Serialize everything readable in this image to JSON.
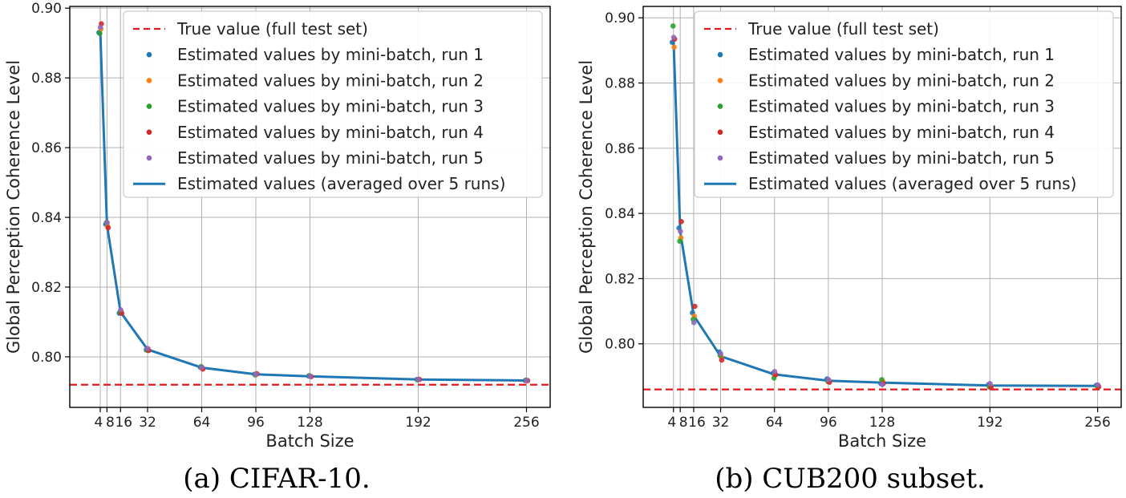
{
  "colors": {
    "run1": "#1f77b4",
    "run2": "#ff7f0e",
    "run3": "#2ca02c",
    "run4": "#d62728",
    "run5": "#9467bd",
    "average": "#1f77b4",
    "true_value": "#e31a1c",
    "grid": "#b0b0b0"
  },
  "legend_labels": {
    "true_value": "True value (full test set)",
    "run1": "Estimated values by mini-batch, run 1",
    "run2": "Estimated values by mini-batch, run 2",
    "run3": "Estimated values by mini-batch, run 3",
    "run4": "Estimated values by mini-batch, run 4",
    "run5": "Estimated values by mini-batch, run 5",
    "average": "Estimated values (averaged over 5 runs)"
  },
  "chart_data": [
    {
      "type": "line",
      "caption": "(a) CIFAR-10.",
      "xlabel": "Batch Size",
      "ylabel": "Global Perception Coherence Level",
      "x": [
        4,
        8,
        16,
        32,
        64,
        96,
        128,
        192,
        256
      ],
      "xticks": [
        4,
        8,
        16,
        32,
        64,
        96,
        128,
        192,
        256
      ],
      "xtick_labels": [
        "4",
        "8",
        "16",
        "32",
        "64",
        "96",
        "128",
        "192",
        "256"
      ],
      "xlim": [
        -14,
        270
      ],
      "ylim": [
        0.7855,
        0.9005
      ],
      "yticks": [
        0.8,
        0.82,
        0.84,
        0.86,
        0.88,
        0.9
      ],
      "ytick_labels": [
        "0.80",
        "0.82",
        "0.84",
        "0.86",
        "0.88",
        "0.90"
      ],
      "legend_position": "upper-right",
      "grid": true,
      "true_value": 0.792,
      "series": [
        {
          "name": "run1",
          "values": [
            0.893,
            0.838,
            0.8125,
            0.802,
            0.797,
            0.795,
            0.7945,
            0.7935,
            0.7932
          ]
        },
        {
          "name": "run2",
          "values": [
            0.894,
            0.8375,
            0.813,
            0.8022,
            0.7968,
            0.7952,
            0.7944,
            0.7936,
            0.7931
          ]
        },
        {
          "name": "run3",
          "values": [
            0.8928,
            0.8385,
            0.8128,
            0.8019,
            0.7972,
            0.7948,
            0.7946,
            0.7934,
            0.7933
          ]
        },
        {
          "name": "run4",
          "values": [
            0.8955,
            0.837,
            0.8125,
            0.8018,
            0.7965,
            0.7951,
            0.7943,
            0.7935,
            0.7932
          ]
        },
        {
          "name": "run5",
          "values": [
            0.8945,
            0.8385,
            0.8135,
            0.8024,
            0.797,
            0.795,
            0.7944,
            0.7935,
            0.7932
          ]
        }
      ],
      "average": [
        0.8935,
        0.8378,
        0.8128,
        0.8021,
        0.7969,
        0.795,
        0.7944,
        0.7935,
        0.7932
      ]
    },
    {
      "type": "line",
      "caption": "(b) CUB200 subset.",
      "xlabel": "Batch Size",
      "ylabel": "Global Perception Coherence Level",
      "x": [
        4,
        8,
        16,
        32,
        64,
        96,
        128,
        192,
        256
      ],
      "xticks": [
        4,
        8,
        16,
        32,
        64,
        96,
        128,
        192,
        256
      ],
      "xtick_labels": [
        "4",
        "8",
        "16",
        "32",
        "64",
        "96",
        "128",
        "192",
        "256"
      ],
      "xlim": [
        -14,
        270
      ],
      "ylim": [
        0.7805,
        0.9035
      ],
      "yticks": [
        0.8,
        0.82,
        0.84,
        0.86,
        0.88,
        0.9
      ],
      "ytick_labels": [
        "0.80",
        "0.82",
        "0.84",
        "0.86",
        "0.88",
        "0.90"
      ],
      "legend_position": "upper-right",
      "grid": true,
      "true_value": 0.786,
      "series": [
        {
          "name": "run1",
          "values": [
            0.8925,
            0.8355,
            0.8095,
            0.7975,
            0.791,
            0.7892,
            0.7878,
            0.7875,
            0.7873
          ]
        },
        {
          "name": "run2",
          "values": [
            0.891,
            0.8325,
            0.8085,
            0.796,
            0.7905,
            0.7888,
            0.7885,
            0.7872,
            0.7872
          ]
        },
        {
          "name": "run3",
          "values": [
            0.8975,
            0.8315,
            0.8075,
            0.7965,
            0.7895,
            0.7885,
            0.789,
            0.7868,
            0.787
          ]
        },
        {
          "name": "run4",
          "values": [
            0.8935,
            0.8375,
            0.8115,
            0.795,
            0.7905,
            0.7882,
            0.7878,
            0.7865,
            0.7868
          ]
        },
        {
          "name": "run5",
          "values": [
            0.894,
            0.8345,
            0.8065,
            0.797,
            0.7915,
            0.789,
            0.7875,
            0.7878,
            0.7874
          ]
        }
      ],
      "average": [
        0.8935,
        0.8343,
        0.8087,
        0.7962,
        0.7906,
        0.7887,
        0.7881,
        0.7872,
        0.7871
      ]
    }
  ]
}
